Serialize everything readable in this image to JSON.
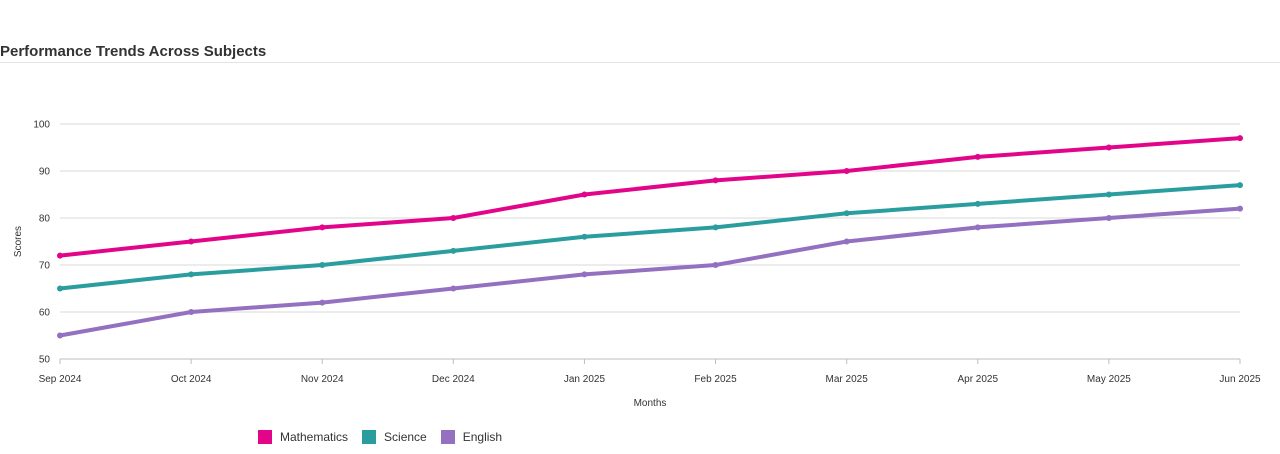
{
  "title": "Performance Trends Across Subjects",
  "chart_data": {
    "type": "line",
    "title": "Performance Trends Across Subjects",
    "xlabel": "Months",
    "ylabel": "Scores",
    "categories": [
      "Sep 2024",
      "Oct 2024",
      "Nov 2024",
      "Dec 2024",
      "Jan 2025",
      "Feb 2025",
      "Mar 2025",
      "Apr 2025",
      "May 2025",
      "Jun 2025"
    ],
    "ylim": [
      50,
      100
    ],
    "yticks": [
      50,
      60,
      70,
      80,
      90,
      100
    ],
    "grid": true,
    "legend_position": "bottom-left",
    "series": [
      {
        "name": "Mathematics",
        "color": "#e2058a",
        "values": [
          72,
          75,
          78,
          80,
          85,
          88,
          90,
          93,
          95,
          97
        ]
      },
      {
        "name": "Science",
        "color": "#2a9d9f",
        "values": [
          65,
          68,
          70,
          73,
          76,
          78,
          81,
          83,
          85,
          87
        ]
      },
      {
        "name": "English",
        "color": "#9370c0",
        "values": [
          55,
          60,
          62,
          65,
          68,
          70,
          75,
          78,
          80,
          82
        ]
      }
    ]
  }
}
